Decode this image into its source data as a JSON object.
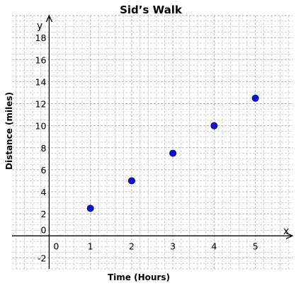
{
  "chart_data": {
    "type": "scatter",
    "title": "Sid’s Walk",
    "xlabel": "Time (Hours)",
    "ylabel": "Distance (miles)",
    "x_axis_symbol": "x",
    "y_axis_symbol": "y",
    "xlim": [
      -0.9,
      5.9
    ],
    "ylim": [
      -3.0,
      20.0
    ],
    "x_ticks": [
      "0",
      "1",
      "2",
      "3",
      "4",
      "5"
    ],
    "y_ticks": [
      "-2",
      "0",
      "2",
      "4",
      "6",
      "8",
      "10",
      "12",
      "14",
      "16",
      "18"
    ],
    "grid": true,
    "points": [
      {
        "x": 1,
        "y": 2.5
      },
      {
        "x": 2,
        "y": 5
      },
      {
        "x": 3,
        "y": 7.5
      },
      {
        "x": 4,
        "y": 10
      },
      {
        "x": 5,
        "y": 12.5
      }
    ],
    "colors": {
      "point": "#1010d8",
      "point_outline": "#0a0a70",
      "minor_grid": "#d2d2d2",
      "major_grid": "#b4b4b4",
      "axis": "#000000"
    }
  }
}
